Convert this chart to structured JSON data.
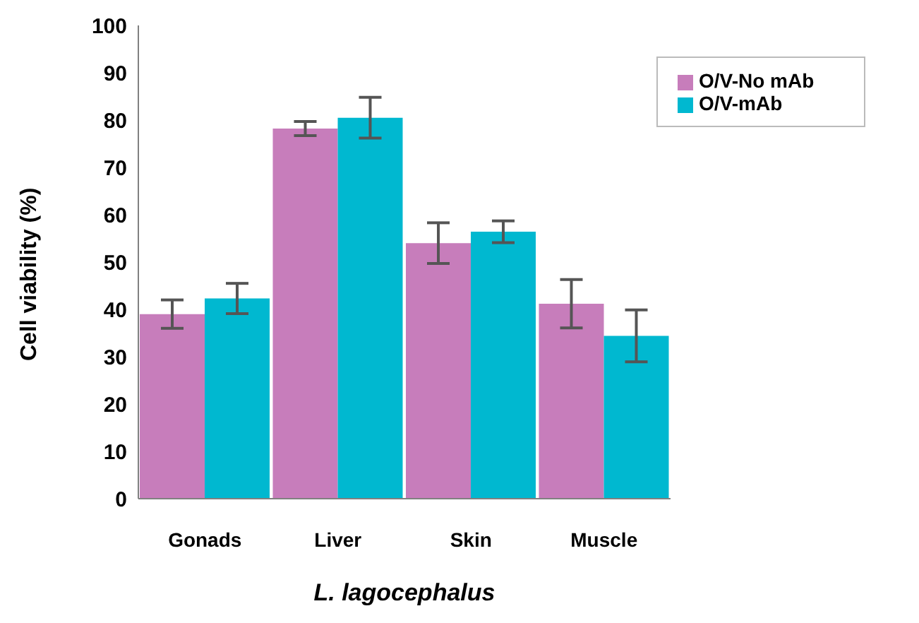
{
  "chart_data": {
    "type": "bar",
    "xlabel": "L. lagocephalus",
    "ylabel": "Cell viability (%)",
    "categories": [
      "Gonads",
      "Liver",
      "Skin",
      "Muscle"
    ],
    "series": [
      {
        "name": "O/V-No mAb",
        "color": "#c77dbb",
        "values": [
          39,
          78.2,
          54,
          41.2
        ],
        "errors": [
          3,
          1.5,
          4.3,
          5.1
        ]
      },
      {
        "name": "O/V-mAb",
        "color": "#00b8d0",
        "values": [
          42.3,
          80.5,
          56.4,
          34.4
        ],
        "errors": [
          3.2,
          4.3,
          2.3,
          5.5
        ]
      }
    ],
    "ylim": [
      0,
      100
    ],
    "yticks": [
      0,
      10,
      20,
      30,
      40,
      50,
      60,
      70,
      80,
      90,
      100
    ],
    "grid": false,
    "legend": "top right"
  }
}
